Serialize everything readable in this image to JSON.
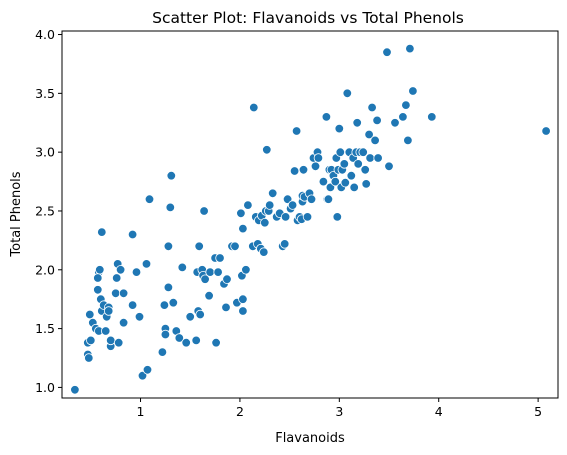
{
  "chart_data": {
    "type": "scatter",
    "title": "Scatter Plot: Flavanoids vs Total Phenols",
    "xlabel": "Flavanoids",
    "ylabel": "Total Phenols",
    "xlim": [
      0.21,
      5.2
    ],
    "ylim": [
      0.91,
      4.03
    ],
    "xticks": [
      1,
      2,
      3,
      4,
      5
    ],
    "yticks": [
      1.0,
      1.5,
      2.0,
      2.5,
      3.0,
      3.5,
      4.0
    ],
    "xtick_labels": [
      "1",
      "2",
      "3",
      "4",
      "5"
    ],
    "ytick_labels": [
      "1.0",
      "1.5",
      "2.0",
      "2.5",
      "3.0",
      "3.5",
      "4.0"
    ],
    "grid": false,
    "legend": "none",
    "marker_color": "#1f77b4",
    "points": [
      [
        0.34,
        0.98
      ],
      [
        0.47,
        1.28
      ],
      [
        0.48,
        1.25
      ],
      [
        0.47,
        1.38
      ],
      [
        0.5,
        1.4
      ],
      [
        0.49,
        1.62
      ],
      [
        0.52,
        1.55
      ],
      [
        0.55,
        1.5
      ],
      [
        0.57,
        1.83
      ],
      [
        0.58,
        1.98
      ],
      [
        0.59,
        2.0
      ],
      [
        0.57,
        1.93
      ],
      [
        0.6,
        1.75
      ],
      [
        0.58,
        1.48
      ],
      [
        0.61,
        1.65
      ],
      [
        0.61,
        2.32
      ],
      [
        0.63,
        1.7
      ],
      [
        0.65,
        1.48
      ],
      [
        0.66,
        1.6
      ],
      [
        0.68,
        1.68
      ],
      [
        0.7,
        1.35
      ],
      [
        0.68,
        1.65
      ],
      [
        0.7,
        1.4
      ],
      [
        0.75,
        1.8
      ],
      [
        0.76,
        1.93
      ],
      [
        0.77,
        2.05
      ],
      [
        0.78,
        1.38
      ],
      [
        0.8,
        2.0
      ],
      [
        0.83,
        1.8
      ],
      [
        0.83,
        1.55
      ],
      [
        0.92,
        2.3
      ],
      [
        0.92,
        1.7
      ],
      [
        0.96,
        1.98
      ],
      [
        0.99,
        1.6
      ],
      [
        1.02,
        1.1
      ],
      [
        1.07,
        1.15
      ],
      [
        1.06,
        2.05
      ],
      [
        1.09,
        2.6
      ],
      [
        1.22,
        1.3
      ],
      [
        1.24,
        1.7
      ],
      [
        1.25,
        1.5
      ],
      [
        1.25,
        1.45
      ],
      [
        1.28,
        2.2
      ],
      [
        1.28,
        1.85
      ],
      [
        1.3,
        2.53
      ],
      [
        1.31,
        2.8
      ],
      [
        1.33,
        1.72
      ],
      [
        1.36,
        1.48
      ],
      [
        1.39,
        1.42
      ],
      [
        1.42,
        2.02
      ],
      [
        1.46,
        1.38
      ],
      [
        1.5,
        1.6
      ],
      [
        1.56,
        1.4
      ],
      [
        1.57,
        1.98
      ],
      [
        1.58,
        1.65
      ],
      [
        1.59,
        2.2
      ],
      [
        1.6,
        1.62
      ],
      [
        1.62,
        2.0
      ],
      [
        1.63,
        1.95
      ],
      [
        1.64,
        2.5
      ],
      [
        1.65,
        1.92
      ],
      [
        1.69,
        1.78
      ],
      [
        1.7,
        1.98
      ],
      [
        1.75,
        2.1
      ],
      [
        1.76,
        1.38
      ],
      [
        1.78,
        1.98
      ],
      [
        1.8,
        2.1
      ],
      [
        1.84,
        1.88
      ],
      [
        1.86,
        1.68
      ],
      [
        1.87,
        1.92
      ],
      [
        1.92,
        2.2
      ],
      [
        1.95,
        2.2
      ],
      [
        1.97,
        1.72
      ],
      [
        2.02,
        1.95
      ],
      [
        2.03,
        1.65
      ],
      [
        2.03,
        1.75
      ],
      [
        2.01,
        2.48
      ],
      [
        2.03,
        2.35
      ],
      [
        2.06,
        2.0
      ],
      [
        2.08,
        2.55
      ],
      [
        2.13,
        2.2
      ],
      [
        2.14,
        3.38
      ],
      [
        2.16,
        2.45
      ],
      [
        2.18,
        2.22
      ],
      [
        2.19,
        2.42
      ],
      [
        2.21,
        2.18
      ],
      [
        2.22,
        2.46
      ],
      [
        2.24,
        2.15
      ],
      [
        2.25,
        2.4
      ],
      [
        2.26,
        2.5
      ],
      [
        2.27,
        3.02
      ],
      [
        2.29,
        2.5
      ],
      [
        2.3,
        2.55
      ],
      [
        2.33,
        2.65
      ],
      [
        2.37,
        2.45
      ],
      [
        2.4,
        2.48
      ],
      [
        2.43,
        2.2
      ],
      [
        2.45,
        2.22
      ],
      [
        2.46,
        2.45
      ],
      [
        2.48,
        2.6
      ],
      [
        2.51,
        2.52
      ],
      [
        2.53,
        2.55
      ],
      [
        2.55,
        2.84
      ],
      [
        2.57,
        3.18
      ],
      [
        2.58,
        2.42
      ],
      [
        2.6,
        2.45
      ],
      [
        2.62,
        2.43
      ],
      [
        2.63,
        2.58
      ],
      [
        2.63,
        2.63
      ],
      [
        2.64,
        2.85
      ],
      [
        2.65,
        2.62
      ],
      [
        2.68,
        2.45
      ],
      [
        2.7,
        2.65
      ],
      [
        2.72,
        2.6
      ],
      [
        2.74,
        2.95
      ],
      [
        2.76,
        2.88
      ],
      [
        2.78,
        3.0
      ],
      [
        2.79,
        2.95
      ],
      [
        2.84,
        2.75
      ],
      [
        2.87,
        3.3
      ],
      [
        2.88,
        2.6
      ],
      [
        2.89,
        2.6
      ],
      [
        2.9,
        2.85
      ],
      [
        2.91,
        2.7
      ],
      [
        2.92,
        2.85
      ],
      [
        2.94,
        2.8
      ],
      [
        2.96,
        2.75
      ],
      [
        2.97,
        2.95
      ],
      [
        2.98,
        2.45
      ],
      [
        2.99,
        2.85
      ],
      [
        3.0,
        3.2
      ],
      [
        3.01,
        3.0
      ],
      [
        3.02,
        2.7
      ],
      [
        3.03,
        2.85
      ],
      [
        3.05,
        2.9
      ],
      [
        3.06,
        2.74
      ],
      [
        3.08,
        3.5
      ],
      [
        3.1,
        3.0
      ],
      [
        3.12,
        2.8
      ],
      [
        3.14,
        2.95
      ],
      [
        3.15,
        2.7
      ],
      [
        3.17,
        3.0
      ],
      [
        3.18,
        3.25
      ],
      [
        3.19,
        2.9
      ],
      [
        3.21,
        3.0
      ],
      [
        3.24,
        3.0
      ],
      [
        3.26,
        2.85
      ],
      [
        3.27,
        2.73
      ],
      [
        3.3,
        3.15
      ],
      [
        3.31,
        2.95
      ],
      [
        3.33,
        3.38
      ],
      [
        3.36,
        3.1
      ],
      [
        3.38,
        3.27
      ],
      [
        3.39,
        2.95
      ],
      [
        3.48,
        3.85
      ],
      [
        3.5,
        2.88
      ],
      [
        3.56,
        3.25
      ],
      [
        3.64,
        3.3
      ],
      [
        3.67,
        3.4
      ],
      [
        3.69,
        3.1
      ],
      [
        3.71,
        3.88
      ],
      [
        3.74,
        3.52
      ],
      [
        3.93,
        3.3
      ],
      [
        5.08,
        3.18
      ]
    ]
  }
}
